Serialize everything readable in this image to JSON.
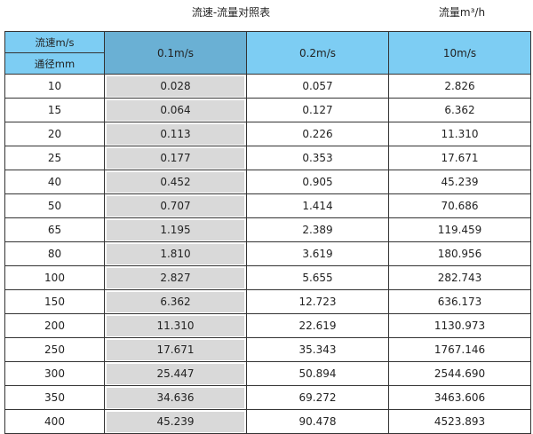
{
  "title": "流速-流量对照表",
  "unit": "流量m³/h",
  "header": {
    "speed_label": "流速m/s",
    "diameter_label": "通径mm",
    "columns": [
      "0.1m/s",
      "0.2m/s",
      "10m/s"
    ]
  },
  "colors": {
    "header": "#7dcdf3",
    "highlight_header": "#6ab0d4",
    "highlight_cells": "#d9d9d9"
  },
  "rows": [
    [
      "10",
      "0.028",
      "0.057",
      "2.826"
    ],
    [
      "15",
      "0.064",
      "0.127",
      "6.362"
    ],
    [
      "20",
      "0.113",
      "0.226",
      "11.310"
    ],
    [
      "25",
      "0.177",
      "0.353",
      "17.671"
    ],
    [
      "40",
      "0.452",
      "0.905",
      "45.239"
    ],
    [
      "50",
      "0.707",
      "1.414",
      "70.686"
    ],
    [
      "65",
      "1.195",
      "2.389",
      "119.459"
    ],
    [
      "80",
      "1.810",
      "3.619",
      "180.956"
    ],
    [
      "100",
      "2.827",
      "5.655",
      "282.743"
    ],
    [
      "150",
      "6.362",
      "12.723",
      "636.173"
    ],
    [
      "200",
      "11.310",
      "22.619",
      "1130.973"
    ],
    [
      "250",
      "17.671",
      "35.343",
      "1767.146"
    ],
    [
      "300",
      "25.447",
      "50.894",
      "2544.690"
    ],
    [
      "350",
      "34.636",
      "69.272",
      "3463.606"
    ],
    [
      "400",
      "45.239",
      "90.478",
      "4523.893"
    ]
  ]
}
